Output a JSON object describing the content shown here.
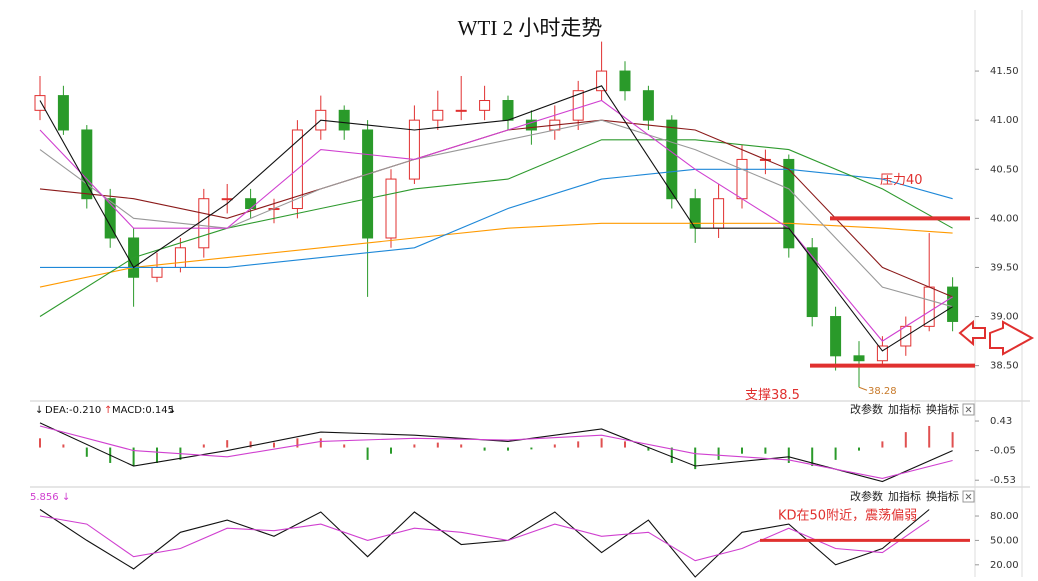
{
  "chart_data": [
    {
      "type": "candlestick",
      "title": "WTI 2 小时走势",
      "x": [
        0,
        1,
        2,
        3,
        4,
        5,
        6,
        7,
        8,
        9,
        10,
        11,
        12,
        13,
        14,
        15,
        16,
        17,
        18,
        19,
        20,
        21,
        22,
        23,
        24,
        25,
        26,
        27,
        28,
        29,
        30,
        31,
        32,
        33,
        34,
        35,
        36,
        37,
        38,
        39
      ],
      "open": [
        41.1,
        41.25,
        40.9,
        40.2,
        39.8,
        39.4,
        39.5,
        39.7,
        40.2,
        40.2,
        40.1,
        40.1,
        40.9,
        41.1,
        40.9,
        39.8,
        40.4,
        41.0,
        41.1,
        41.1,
        41.2,
        41.0,
        40.9,
        41.0,
        41.3,
        41.5,
        41.3,
        41.0,
        40.2,
        39.9,
        40.2,
        40.6,
        40.6,
        39.7,
        39.0,
        38.6,
        38.55,
        38.7,
        38.9,
        39.3
      ],
      "high": [
        41.45,
        41.35,
        40.95,
        40.3,
        39.9,
        39.65,
        39.8,
        40.3,
        40.35,
        40.3,
        40.2,
        41.0,
        41.25,
        41.15,
        41.0,
        40.5,
        41.15,
        41.3,
        41.45,
        41.35,
        41.25,
        41.1,
        41.15,
        41.4,
        41.8,
        41.6,
        41.35,
        41.05,
        40.3,
        40.35,
        40.75,
        40.7,
        40.65,
        39.8,
        39.1,
        38.75,
        38.8,
        39.0,
        39.85,
        39.4
      ],
      "low": [
        41.0,
        40.85,
        40.1,
        39.7,
        39.1,
        39.35,
        39.45,
        39.6,
        40.05,
        40.0,
        39.95,
        40.0,
        40.8,
        40.8,
        39.2,
        39.7,
        40.35,
        40.9,
        41.0,
        41.0,
        40.9,
        40.75,
        40.8,
        40.9,
        41.2,
        41.2,
        40.9,
        40.1,
        39.75,
        39.8,
        40.1,
        40.45,
        39.6,
        38.9,
        38.45,
        38.28,
        38.5,
        38.6,
        38.85,
        38.85
      ],
      "close": [
        41.25,
        40.9,
        40.2,
        39.8,
        39.4,
        39.5,
        39.7,
        40.2,
        40.2,
        40.1,
        40.1,
        40.9,
        41.1,
        40.9,
        39.8,
        40.4,
        41.0,
        41.1,
        41.1,
        41.2,
        41.0,
        40.9,
        41.0,
        41.3,
        41.5,
        41.3,
        41.0,
        40.2,
        39.9,
        40.2,
        40.6,
        40.6,
        39.7,
        39.0,
        38.6,
        38.55,
        38.7,
        38.9,
        39.3,
        38.95
      ],
      "up_color": "#e03030",
      "down_color": "#2a9a2a",
      "series": [
        {
          "color": "#ff9a00",
          "x": [
            0,
            4,
            8,
            12,
            16,
            20,
            24,
            28,
            32,
            36,
            39
          ],
          "values": [
            39.3,
            39.5,
            39.6,
            39.7,
            39.8,
            39.9,
            39.95,
            39.95,
            39.95,
            39.9,
            39.85
          ]
        },
        {
          "color": "#1e88d8",
          "x": [
            0,
            4,
            8,
            12,
            16,
            20,
            24,
            28,
            32,
            36,
            39
          ],
          "values": [
            39.5,
            39.5,
            39.5,
            39.6,
            39.7,
            40.1,
            40.4,
            40.5,
            40.5,
            40.4,
            40.2
          ]
        },
        {
          "color": "#2e9a2e",
          "x": [
            0,
            4,
            8,
            12,
            16,
            20,
            24,
            28,
            32,
            36,
            39
          ],
          "values": [
            39.0,
            39.6,
            39.9,
            40.1,
            40.3,
            40.4,
            40.8,
            40.8,
            40.7,
            40.3,
            39.9
          ]
        },
        {
          "color": "#8b1a1a",
          "x": [
            0,
            4,
            8,
            12,
            16,
            20,
            24,
            28,
            32,
            36,
            39
          ],
          "values": [
            40.3,
            40.2,
            40.0,
            40.3,
            40.6,
            40.9,
            41.0,
            40.9,
            40.5,
            39.5,
            39.2
          ]
        },
        {
          "color": "#999999",
          "x": [
            0,
            4,
            8,
            12,
            16,
            20,
            24,
            28,
            32,
            36,
            39
          ],
          "values": [
            40.7,
            40.0,
            39.9,
            40.3,
            40.6,
            40.8,
            41.0,
            40.7,
            40.3,
            39.3,
            39.1
          ]
        },
        {
          "color": "#d040d0",
          "x": [
            0,
            4,
            8,
            12,
            16,
            20,
            24,
            28,
            32,
            36,
            39
          ],
          "values": [
            40.9,
            39.9,
            39.9,
            40.7,
            40.6,
            40.9,
            41.2,
            40.5,
            39.9,
            38.75,
            39.2
          ]
        },
        {
          "color": "#111111",
          "x": [
            0,
            4,
            8,
            12,
            16,
            20,
            24,
            28,
            32,
            36,
            39
          ],
          "values": [
            41.2,
            39.5,
            40.15,
            41.0,
            40.9,
            41.0,
            41.35,
            39.9,
            39.9,
            38.65,
            39.1
          ]
        }
      ],
      "lines": [
        {
          "text": "压力40",
          "value": 40
        },
        {
          "text": "支撑38.5",
          "value": 38.5
        }
      ],
      "low_label": "38.28",
      "xlim": [
        -0.5,
        40.5
      ],
      "ylim": [
        38.15,
        42.02
      ],
      "yticks": [
        {
          "value": 38.5,
          "label": "38.50"
        },
        {
          "value": 39,
          "label": "39.00"
        },
        {
          "value": 39.5,
          "label": "39.50"
        },
        {
          "value": 40,
          "label": "40.00"
        },
        {
          "value": 40.5,
          "label": "40.50"
        },
        {
          "value": 41,
          "label": "41.00"
        },
        {
          "value": 41.5,
          "label": "41.50"
        }
      ]
    },
    {
      "type": "macd",
      "header": [
        "↓",
        "DEA:-0.210",
        "↑",
        "MACD:0.145",
        "↓"
      ],
      "values": [
        0.15,
        0.05,
        -0.15,
        -0.25,
        -0.3,
        -0.25,
        -0.2,
        0.05,
        0.12,
        0.1,
        0.08,
        0.15,
        0.15,
        0.05,
        -0.2,
        -0.1,
        0.05,
        0.08,
        0.05,
        -0.05,
        -0.05,
        -0.03,
        0.05,
        0.1,
        0.15,
        0.1,
        -0.05,
        -0.25,
        -0.35,
        -0.2,
        -0.1,
        -0.1,
        -0.25,
        -0.3,
        -0.2,
        -0.05,
        0.1,
        0.25,
        0.35,
        0.25
      ],
      "series": [
        {
          "color": "#111111",
          "x": [
            0,
            4,
            8,
            12,
            16,
            20,
            24,
            28,
            32,
            36,
            39
          ],
          "values": [
            0.4,
            -0.3,
            -0.05,
            0.25,
            0.2,
            0.1,
            0.3,
            -0.3,
            -0.15,
            -0.55,
            -0.05
          ]
        },
        {
          "color": "#d040d0",
          "x": [
            0,
            4,
            8,
            12,
            16,
            20,
            24,
            28,
            32,
            36,
            39
          ],
          "values": [
            0.35,
            -0.05,
            -0.15,
            0.1,
            0.15,
            0.12,
            0.2,
            -0.1,
            -0.2,
            -0.5,
            -0.21
          ]
        }
      ],
      "ylim": [
        -0.64,
        0.69
      ],
      "yticks": [
        -0.53,
        -0.05,
        0.43
      ]
    },
    {
      "type": "kd",
      "header": [
        "5.856",
        "↓"
      ],
      "series": [
        {
          "color": "#111111",
          "x": [
            0,
            2,
            4,
            6,
            8,
            10,
            12,
            14,
            16,
            18,
            20,
            22,
            24,
            26,
            28,
            30,
            32,
            34,
            36,
            38
          ],
          "values": [
            88,
            50,
            15,
            60,
            75,
            55,
            85,
            30,
            85,
            45,
            50,
            85,
            35,
            75,
            5,
            60,
            70,
            20,
            40,
            88
          ]
        },
        {
          "color": "#d040d0",
          "x": [
            0,
            2,
            4,
            6,
            8,
            10,
            12,
            14,
            16,
            18,
            20,
            22,
            24,
            26,
            28,
            30,
            32,
            34,
            36,
            38
          ],
          "values": [
            80,
            70,
            30,
            40,
            65,
            62,
            70,
            50,
            65,
            60,
            50,
            70,
            55,
            60,
            25,
            40,
            65,
            40,
            35,
            75
          ]
        }
      ],
      "lines": [
        {
          "value": 50
        }
      ],
      "annotation": "KD在50附近，震荡偏弱",
      "ylim": [
        5,
        112
      ],
      "yticks": [
        {
          "value": 20,
          "label": "20.00"
        },
        {
          "value": 50,
          "label": "50.00"
        },
        {
          "value": 80,
          "label": "80.00"
        }
      ]
    }
  ],
  "toolbar": [
    "改参数",
    "加指标",
    "换指标"
  ]
}
